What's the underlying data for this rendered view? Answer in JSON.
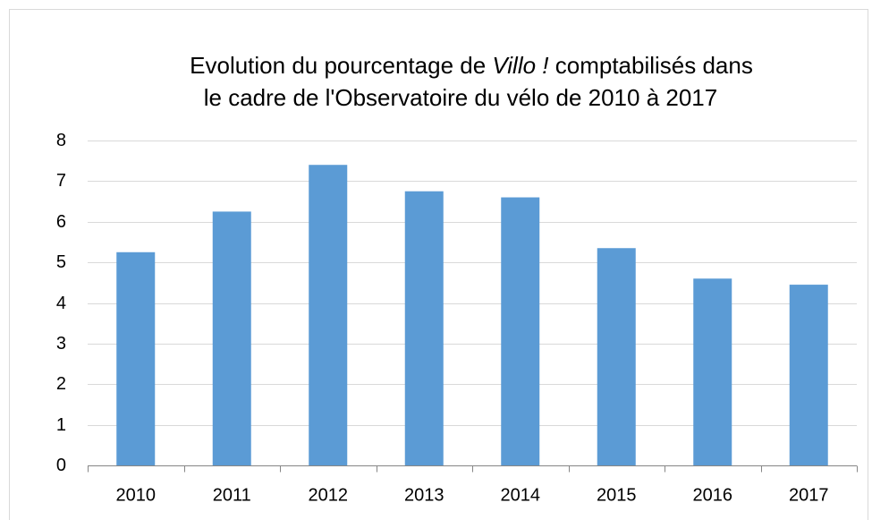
{
  "chart_data": {
    "type": "bar",
    "title": [
      [
        "Evolution du pourcentage de ",
        "Villo !",
        " comptabilisés  dans"
      ],
      [
        "le cadre de l'Observatoire du vélo de 2010 à 2017"
      ]
    ],
    "categories": [
      "2010",
      "2011",
      "2012",
      "2013",
      "2014",
      "2015",
      "2016",
      "2017"
    ],
    "values": [
      5.25,
      6.25,
      7.4,
      6.75,
      6.6,
      5.35,
      4.6,
      4.45
    ],
    "color": "#5b9bd5",
    "ylim": [
      0,
      8
    ],
    "yticks": [
      0,
      1,
      2,
      3,
      4,
      5,
      6,
      7,
      8
    ],
    "grid": true
  }
}
